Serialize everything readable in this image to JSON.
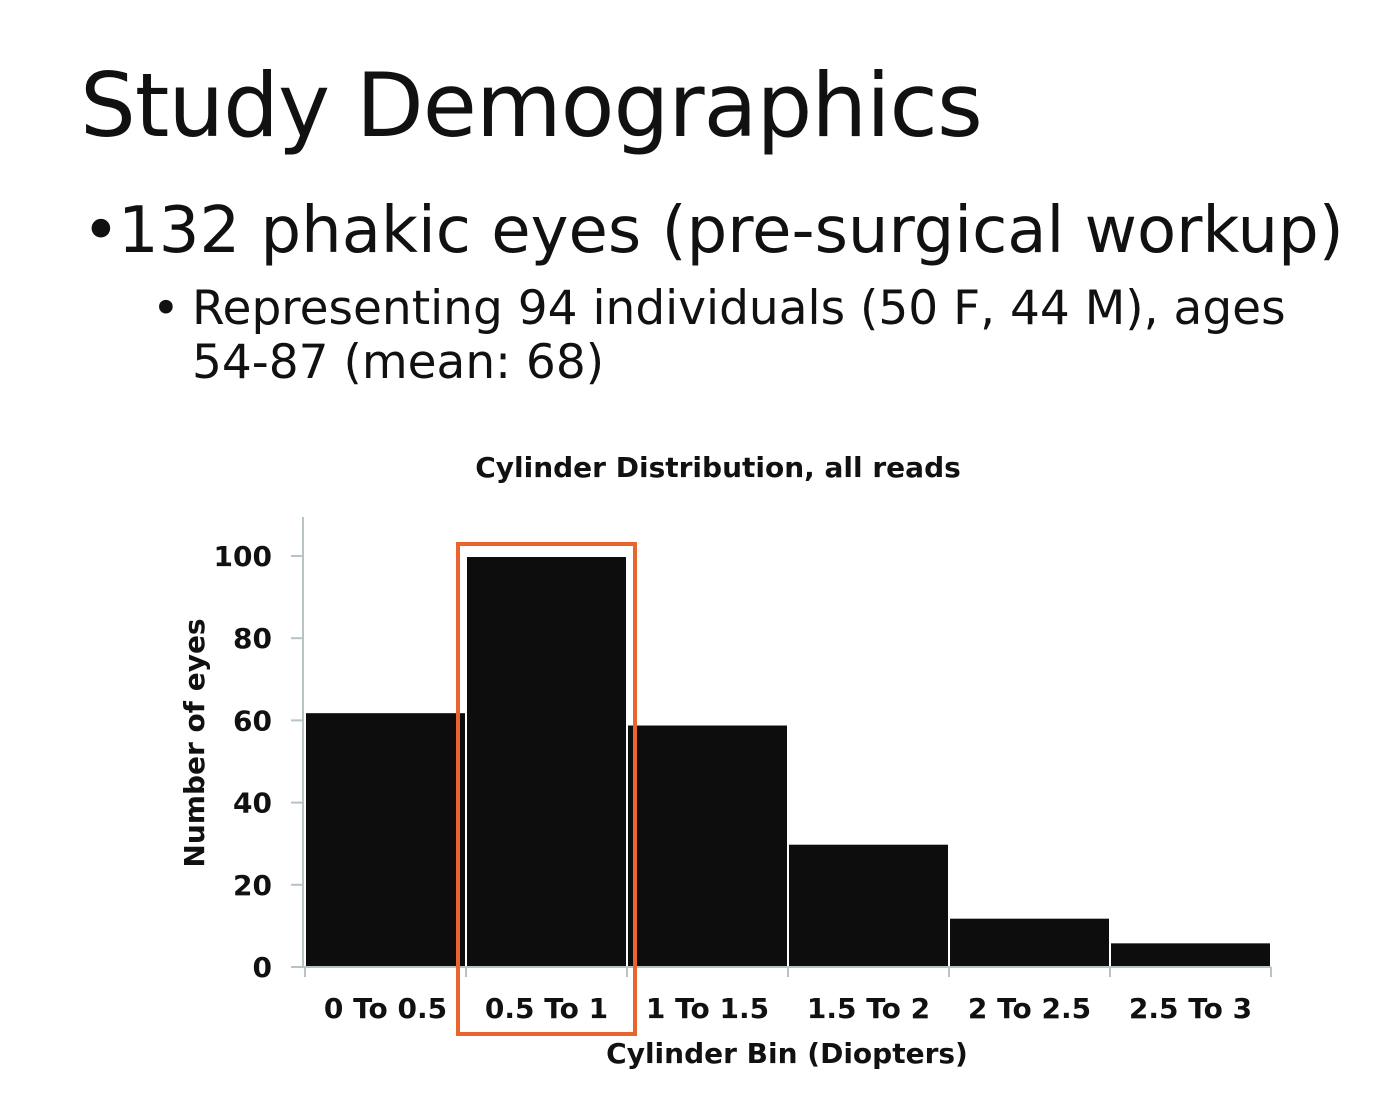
{
  "slide": {
    "title": "Study Demographics",
    "bullet_1": "132 phakic eyes (pre-surgical workup)",
    "bullet_2": "Representing 94 individuals (50 F, 44 M), ages 54-87 (mean: 68)",
    "bullet_glyph": "•"
  },
  "chart_data": {
    "type": "bar",
    "title": "Cylinder Distribution, all reads",
    "xlabel": "Cylinder Bin (Diopters)",
    "ylabel": "Number of eyes",
    "categories": [
      "0 To 0.5",
      "0.5 To 1",
      "1 To 1.5",
      "1.5 To 2",
      "2 To 2.5",
      "2.5 To 3"
    ],
    "values": [
      62,
      100,
      59,
      30,
      12,
      6
    ],
    "ylim": [
      0,
      110
    ],
    "yticks": [
      0,
      20,
      40,
      60,
      80,
      100
    ],
    "highlighted_category": "0.5 To 1",
    "colors": {
      "bar": "#0d0d0d",
      "bar_separator": "#ffffff",
      "highlight": "#e8652b",
      "axis": "#b8c3c6"
    }
  }
}
